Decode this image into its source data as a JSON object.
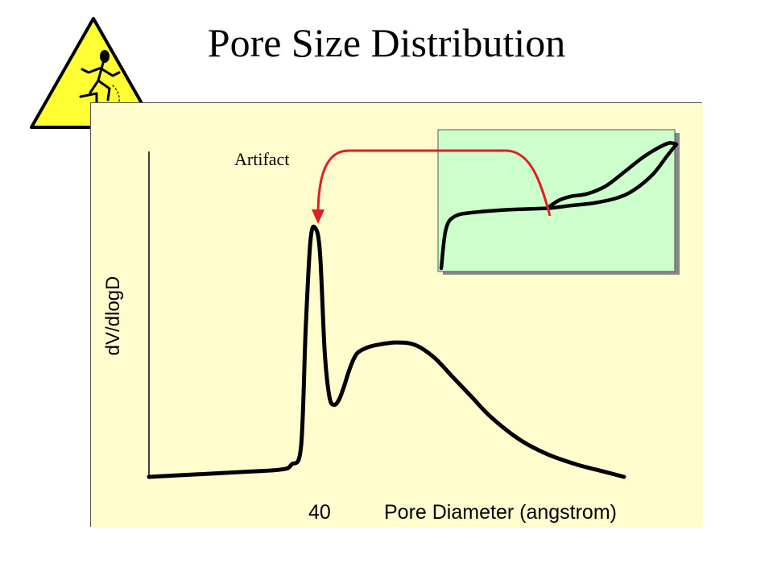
{
  "slide": {
    "title": "Pore Size Distribution"
  },
  "colors": {
    "panel_background": "#fffccd",
    "inset_background": "#ccffcc",
    "arrow": "#e02020",
    "curve": "#000000",
    "logo_triangle": "#ffff33"
  },
  "chart_data": [
    {
      "type": "line",
      "title": "",
      "xlabel": "Pore Diameter (angstrom)",
      "ylabel": "dV/dlogD",
      "x_tick_labels": [
        "40"
      ],
      "grid": false,
      "annotations": [
        "Artifact"
      ],
      "series": [
        {
          "values_note": "qualitative curve: sharp spike near 40 followed by a broad hump",
          "x": [
            0,
            10,
            20,
            28,
            30,
            32,
            33,
            34,
            35,
            36,
            37,
            38,
            39,
            40,
            41,
            42,
            43,
            44,
            46,
            48,
            52,
            56,
            60,
            64,
            68,
            72,
            78,
            84,
            90,
            96,
            100
          ],
          "y": [
            0.0,
            0.01,
            0.02,
            0.03,
            0.05,
            0.12,
            0.6,
            0.95,
            1.0,
            0.9,
            0.5,
            0.32,
            0.29,
            0.31,
            0.36,
            0.42,
            0.47,
            0.5,
            0.52,
            0.53,
            0.54,
            0.53,
            0.48,
            0.4,
            0.32,
            0.24,
            0.15,
            0.09,
            0.05,
            0.02,
            0.0
          ]
        }
      ]
    },
    {
      "type": "line",
      "title": "",
      "xlabel": "",
      "ylabel": "",
      "grid": false,
      "series": [
        {
          "x": [
            0,
            0.02,
            0.06,
            0.15,
            0.3,
            0.45,
            0.55,
            0.65,
            0.75,
            0.82,
            0.9,
            0.96,
            1.0
          ],
          "y": [
            0.0,
            0.3,
            0.4,
            0.43,
            0.45,
            0.46,
            0.48,
            0.5,
            0.54,
            0.6,
            0.72,
            0.86,
            0.95
          ]
        },
        {
          "x": [
            0.45,
            0.5,
            0.55,
            0.62,
            0.7,
            0.78,
            0.85,
            0.92,
            0.97,
            1.0
          ],
          "y": [
            0.46,
            0.52,
            0.55,
            0.57,
            0.63,
            0.74,
            0.84,
            0.92,
            0.96,
            0.95
          ]
        }
      ]
    }
  ]
}
